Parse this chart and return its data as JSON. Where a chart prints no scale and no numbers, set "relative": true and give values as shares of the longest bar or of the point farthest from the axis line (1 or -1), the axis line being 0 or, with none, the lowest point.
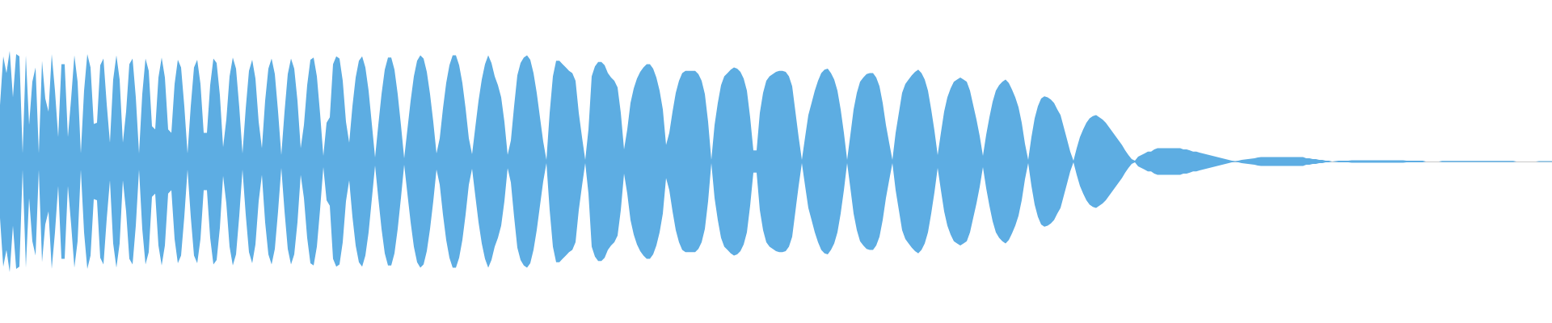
{
  "chart_data": {
    "type": "area",
    "relative": true,
    "categories": [
      null,
      null,
      null,
      null,
      null,
      null,
      null,
      null,
      null,
      null,
      null,
      null,
      null,
      null,
      null,
      null,
      null,
      null,
      null,
      null,
      null,
      null,
      null,
      null,
      null,
      null,
      null,
      null,
      null,
      null,
      null,
      null,
      null,
      null,
      null,
      null,
      null,
      null,
      null,
      null,
      null,
      null,
      null,
      null,
      null,
      null,
      null,
      null,
      null,
      null,
      null,
      null,
      null,
      null,
      null,
      null,
      null,
      null,
      null,
      null,
      null,
      null,
      null,
      null,
      null,
      null,
      null,
      null,
      null,
      null,
      null,
      null,
      null,
      null,
      null,
      null,
      null,
      null,
      null,
      null,
      null,
      null,
      null,
      null,
      null,
      null,
      null,
      null,
      null,
      null,
      null,
      null,
      null,
      null,
      null,
      null,
      null,
      null,
      null,
      null,
      null,
      null,
      null,
      null,
      null,
      null,
      null,
      null,
      null,
      null,
      null,
      null,
      null,
      null,
      null,
      null,
      null,
      null,
      null,
      null,
      null,
      null,
      null,
      null,
      null,
      null,
      null,
      null,
      null,
      null,
      null,
      null,
      null,
      null,
      null,
      null,
      null,
      null,
      null,
      null,
      null,
      null,
      null,
      null,
      null,
      null,
      null,
      null,
      null,
      null,
      null,
      null,
      null,
      null,
      null,
      null,
      null,
      null,
      null,
      null,
      null,
      null,
      null,
      null,
      null,
      null,
      null,
      null,
      null,
      null,
      null,
      null,
      null,
      null,
      null,
      null,
      null,
      null,
      null,
      null,
      null,
      null,
      null,
      null,
      null,
      null,
      null,
      null,
      null,
      null,
      null,
      null,
      null,
      null,
      null,
      null,
      null,
      null,
      null,
      null,
      null,
      null,
      null,
      null,
      null,
      null,
      null,
      null,
      null,
      null,
      null,
      null,
      null,
      null,
      null,
      null,
      null,
      null,
      null,
      null,
      null,
      null,
      null,
      null,
      null,
      null,
      null,
      null,
      null,
      null,
      null,
      null,
      null,
      null,
      null,
      null,
      null,
      null,
      null,
      null,
      null,
      null,
      null,
      null,
      null,
      null,
      null,
      null,
      null,
      null,
      null,
      null,
      null,
      null,
      null,
      null,
      null,
      null,
      null,
      null,
      null,
      null,
      null,
      null,
      null,
      null,
      null,
      null,
      null,
      null,
      null,
      null,
      null,
      null,
      null,
      null,
      null,
      null,
      null,
      null,
      null,
      null,
      null,
      null,
      null,
      null,
      null,
      null,
      null,
      null,
      null,
      null,
      null,
      null,
      null,
      null,
      null,
      null,
      null,
      null,
      null,
      null,
      null,
      null,
      null,
      null,
      null,
      null,
      null,
      null,
      null,
      null,
      null,
      null,
      null,
      null,
      null,
      null,
      null,
      null,
      null,
      null,
      null,
      null,
      null,
      null,
      null,
      null,
      null,
      null,
      null,
      null,
      null,
      null,
      null,
      null,
      null,
      null,
      null,
      null,
      null,
      null,
      null,
      null,
      null,
      null,
      null,
      null,
      null,
      null,
      null,
      null,
      null,
      null,
      null,
      null,
      null,
      null,
      null,
      null,
      null,
      null,
      null,
      null,
      null,
      null,
      null,
      null,
      null,
      null,
      null,
      null,
      null,
      null,
      null,
      null,
      null,
      null,
      null,
      null,
      null,
      null,
      null,
      null,
      null,
      null,
      null,
      null,
      null,
      null,
      null,
      null,
      null,
      null,
      null,
      null,
      null,
      null,
      null,
      null,
      null,
      null,
      null,
      null,
      null,
      null,
      null,
      null,
      null,
      null,
      null,
      null,
      null,
      null,
      null,
      null,
      null,
      null,
      null,
      null,
      null,
      null,
      null,
      null,
      null,
      null,
      null,
      null,
      null,
      null,
      null,
      null,
      null,
      null,
      null,
      null,
      null,
      null,
      null,
      null,
      null,
      null,
      null,
      null,
      null,
      null,
      null,
      null,
      null,
      null,
      null,
      null,
      null,
      null,
      null,
      null,
      null,
      null,
      null,
      null,
      null,
      null,
      null,
      null,
      null,
      null,
      null,
      null,
      null,
      null,
      null,
      null,
      null,
      null,
      null,
      null,
      null,
      null,
      null,
      null,
      null
    ],
    "series": [
      {
        "color": "#5dade2",
        "values": [
          0.51,
          0.95,
          0.8,
          1,
          0.58,
          0.97,
          0.95,
          0.073,
          0.96,
          0.33,
          0.72,
          0.85,
          0.073,
          0.91,
          0.57,
          0.45,
          0.97,
          0.64,
          0.22,
          0.88,
          0.88,
          0.22,
          0.57,
          0.96,
          0.72,
          0.073,
          0.64,
          0.97,
          0.85,
          0.34,
          0.35,
          0.87,
          0.93,
          0.52,
          0.17,
          0.74,
          0.96,
          0.74,
          0.17,
          0.45,
          0.88,
          0.93,
          0.58,
          0.073,
          0.61,
          0.93,
          0.82,
          0.32,
          0.29,
          0.76,
          0.94,
          0.76,
          0.29,
          0.26,
          0.7,
          0.92,
          0.85,
          0.5,
          0.073,
          0.5,
          0.85,
          0.92,
          0.7,
          0.26,
          0.26,
          0.69,
          0.93,
          0.89,
          0.6,
          0.13,
          0.38,
          0.77,
          0.94,
          0.84,
          0.49,
          0.073,
          0.48,
          0.82,
          0.92,
          0.75,
          0.36,
          0.12,
          0.55,
          0.84,
          0.93,
          0.79,
          0.45,
          0.058,
          0.45,
          0.79,
          0.93,
          0.84,
          0.55,
          0.12,
          0.33,
          0.69,
          0.92,
          0.94,
          0.77,
          0.43,
          0.051,
          0.35,
          0.4,
          0.88,
          0.95,
          0.93,
          0.73,
          0.36,
          0.17,
          0.5,
          0.76,
          0.91,
          0.95,
          0.85,
          0.64,
          0.34,
          0.036,
          0.33,
          0.61,
          0.83,
          0.94,
          0.94,
          0.83,
          0.61,
          0.33,
          0.029,
          0.29,
          0.55,
          0.77,
          0.91,
          0.96,
          0.93,
          0.81,
          0.61,
          0.36,
          0.073,
          0.21,
          0.48,
          0.71,
          0.87,
          0.96,
          0.96,
          0.87,
          0.71,
          0.48,
          0.21,
          0.066,
          0.31,
          0.55,
          0.74,
          0.88,
          0.96,
          0.89,
          0.77,
          0.69,
          0.58,
          0.36,
          0.06,
          0.19,
          0.5,
          0.78,
          0.89,
          0.94,
          0.96,
          0.92,
          0.8,
          0.62,
          0.4,
          0.18,
          0.015,
          0.44,
          0.77,
          0.91,
          0.91,
          0.88,
          0.85,
          0.82,
          0.8,
          0.73,
          0.44,
          0.22,
          0.015,
          0.29,
          0.77,
          0.86,
          0.9,
          0.9,
          0.87,
          0.8,
          0.76,
          0.73,
          0.67,
          0.44,
          0.11,
          0.29,
          0.53,
          0.66,
          0.75,
          0.81,
          0.85,
          0.88,
          0.88,
          0.84,
          0.76,
          0.64,
          0.47,
          0.15,
          0.26,
          0.45,
          0.62,
          0.73,
          0.8,
          0.82,
          0.82,
          0.82,
          0.82,
          0.79,
          0.73,
          0.61,
          0.36,
          0.015,
          0.33,
          0.53,
          0.69,
          0.77,
          0.8,
          0.83,
          0.85,
          0.84,
          0.81,
          0.75,
          0.64,
          0.4,
          0.1,
          0.1,
          0.44,
          0.62,
          0.73,
          0.77,
          0.79,
          0.81,
          0.82,
          0.82,
          0.81,
          0.77,
          0.68,
          0.45,
          0.22,
          0.015,
          0.22,
          0.42,
          0.53,
          0.64,
          0.73,
          0.8,
          0.83,
          0.84,
          0.8,
          0.74,
          0.64,
          0.47,
          0.26,
          0.015,
          0.24,
          0.47,
          0.62,
          0.72,
          0.76,
          0.79,
          0.8,
          0.8,
          0.76,
          0.68,
          0.53,
          0.33,
          0.17,
          0.015,
          0.26,
          0.44,
          0.62,
          0.7,
          0.74,
          0.78,
          0.81,
          0.83,
          0.8,
          0.74,
          0.64,
          0.47,
          0.28,
          0.058,
          0.26,
          0.45,
          0.58,
          0.66,
          0.72,
          0.74,
          0.76,
          0.74,
          0.72,
          0.64,
          0.51,
          0.38,
          0.23,
          0.051,
          0.24,
          0.4,
          0.54,
          0.64,
          0.69,
          0.72,
          0.74,
          0.71,
          0.65,
          0.58,
          0.49,
          0.35,
          0.16,
          0.015,
          0.22,
          0.39,
          0.5,
          0.57,
          0.59,
          0.58,
          0.56,
          0.53,
          0.47,
          0.42,
          0.31,
          0.2,
          0.09,
          0.007,
          0.12,
          0.22,
          0.29,
          0.35,
          0.39,
          0.41,
          0.42,
          0.4,
          0.38,
          0.35,
          0.31,
          0.27,
          0.23,
          0.19,
          0.15,
          0.1,
          0.058,
          0.022,
          0.007,
          0.044,
          0.058,
          0.073,
          0.09,
          0.09,
          0.11,
          0.12,
          0.12,
          0.12,
          0.12,
          0.12,
          0.12,
          0.12,
          0.12,
          0.11,
          0.11,
          0.1,
          0.09,
          0.09,
          0.08,
          0.073,
          0.066,
          0.058,
          0.051,
          0.044,
          0.036,
          0.029,
          0.022,
          0.015,
          0.007,
          0.004,
          0.007,
          0.015,
          0.018,
          0.022,
          0.026,
          0.029,
          0.036,
          0.04,
          0.04,
          0.04,
          0.04,
          0.04,
          0.04,
          0.04,
          0.04,
          0.04,
          0.04,
          0.04,
          0.04,
          0.04,
          0.04,
          0.029,
          0.029,
          0.022,
          0.022,
          0.015,
          0.015,
          0.007,
          0.007,
          0,
          0.004,
          0.007,
          0.007,
          0.007,
          0.007,
          0.011,
          0.011,
          0.011,
          0.011,
          0.011,
          0.011,
          0.011,
          0.011,
          0.011,
          0.011,
          0.011,
          0.011,
          0.011,
          0.011,
          0.011,
          0.011,
          0.011,
          0.007,
          0.007,
          0.007,
          0.007,
          0.007,
          0.007,
          0,
          0,
          0,
          0,
          0,
          0.005,
          0.005,
          0.005,
          0.005,
          0.005,
          0.005,
          0.005,
          0.005,
          0.005,
          0.005,
          0.005,
          0.005,
          0.005,
          0.005,
          0.005,
          0.005,
          0.005,
          0.005,
          0.005,
          0.005,
          0.005,
          0.005,
          0.005,
          0,
          0,
          0,
          0,
          0,
          0,
          0,
          0.004,
          0.004,
          0.004,
          0.004,
          0.004
        ]
      },
      {
        "color": "#5dade3",
        "values": [
          -0.51,
          -0.95,
          -0.8,
          -1,
          -0.58,
          -0.97,
          -0.95,
          -0.073,
          -0.96,
          -0.33,
          -0.72,
          -0.85,
          -0.073,
          -0.91,
          -0.57,
          -0.45,
          -0.97,
          -0.64,
          -0.22,
          -0.88,
          -0.88,
          -0.22,
          -0.57,
          -0.96,
          -0.72,
          -0.073,
          -0.64,
          -0.97,
          -0.85,
          -0.34,
          -0.35,
          -0.87,
          -0.93,
          -0.52,
          -0.17,
          -0.74,
          -0.96,
          -0.74,
          -0.17,
          -0.45,
          -0.88,
          -0.93,
          -0.58,
          -0.073,
          -0.61,
          -0.93,
          -0.82,
          -0.32,
          -0.29,
          -0.76,
          -0.94,
          -0.76,
          -0.29,
          -0.26,
          -0.7,
          -0.92,
          -0.85,
          -0.5,
          -0.073,
          -0.5,
          -0.85,
          -0.92,
          -0.7,
          -0.26,
          -0.26,
          -0.69,
          -0.93,
          -0.89,
          -0.6,
          -0.13,
          -0.38,
          -0.77,
          -0.94,
          -0.84,
          -0.49,
          -0.073,
          -0.48,
          -0.82,
          -0.92,
          -0.75,
          -0.36,
          -0.12,
          -0.55,
          -0.84,
          -0.93,
          -0.79,
          -0.45,
          -0.058,
          -0.45,
          -0.79,
          -0.93,
          -0.84,
          -0.55,
          -0.12,
          -0.33,
          -0.69,
          -0.92,
          -0.94,
          -0.77,
          -0.43,
          -0.051,
          -0.35,
          -0.4,
          -0.88,
          -0.95,
          -0.93,
          -0.73,
          -0.36,
          -0.17,
          -0.5,
          -0.76,
          -0.91,
          -0.95,
          -0.85,
          -0.64,
          -0.34,
          -0.036,
          -0.33,
          -0.61,
          -0.83,
          -0.94,
          -0.94,
          -0.83,
          -0.61,
          -0.33,
          -0.029,
          -0.29,
          -0.55,
          -0.77,
          -0.91,
          -0.96,
          -0.93,
          -0.81,
          -0.61,
          -0.36,
          -0.073,
          -0.21,
          -0.48,
          -0.71,
          -0.87,
          -0.96,
          -0.96,
          -0.87,
          -0.71,
          -0.48,
          -0.21,
          -0.066,
          -0.31,
          -0.55,
          -0.74,
          -0.88,
          -0.96,
          -0.89,
          -0.77,
          -0.69,
          -0.58,
          -0.36,
          -0.06,
          -0.19,
          -0.5,
          -0.78,
          -0.89,
          -0.94,
          -0.96,
          -0.92,
          -0.8,
          -0.62,
          -0.4,
          -0.18,
          -0.015,
          -0.44,
          -0.77,
          -0.91,
          -0.91,
          -0.88,
          -0.85,
          -0.82,
          -0.8,
          -0.73,
          -0.44,
          -0.22,
          -0.015,
          -0.29,
          -0.77,
          -0.86,
          -0.9,
          -0.9,
          -0.87,
          -0.8,
          -0.76,
          -0.73,
          -0.67,
          -0.44,
          -0.11,
          -0.29,
          -0.53,
          -0.66,
          -0.75,
          -0.81,
          -0.85,
          -0.88,
          -0.88,
          -0.84,
          -0.76,
          -0.64,
          -0.47,
          -0.15,
          -0.26,
          -0.45,
          -0.62,
          -0.73,
          -0.8,
          -0.82,
          -0.82,
          -0.82,
          -0.82,
          -0.79,
          -0.73,
          -0.61,
          -0.36,
          -0.015,
          -0.33,
          -0.53,
          -0.69,
          -0.77,
          -0.8,
          -0.83,
          -0.85,
          -0.84,
          -0.81,
          -0.75,
          -0.64,
          -0.4,
          -0.1,
          -0.1,
          -0.44,
          -0.62,
          -0.73,
          -0.77,
          -0.79,
          -0.81,
          -0.82,
          -0.82,
          -0.81,
          -0.77,
          -0.68,
          -0.45,
          -0.22,
          -0.015,
          -0.22,
          -0.42,
          -0.53,
          -0.64,
          -0.73,
          -0.8,
          -0.83,
          -0.84,
          -0.8,
          -0.74,
          -0.64,
          -0.47,
          -0.26,
          -0.015,
          -0.24,
          -0.47,
          -0.62,
          -0.72,
          -0.76,
          -0.79,
          -0.8,
          -0.8,
          -0.76,
          -0.68,
          -0.53,
          -0.33,
          -0.17,
          -0.015,
          -0.26,
          -0.44,
          -0.62,
          -0.7,
          -0.74,
          -0.78,
          -0.81,
          -0.83,
          -0.8,
          -0.74,
          -0.64,
          -0.47,
          -0.28,
          -0.058,
          -0.26,
          -0.45,
          -0.58,
          -0.66,
          -0.72,
          -0.74,
          -0.76,
          -0.74,
          -0.72,
          -0.64,
          -0.51,
          -0.38,
          -0.23,
          -0.051,
          -0.24,
          -0.4,
          -0.54,
          -0.64,
          -0.69,
          -0.72,
          -0.74,
          -0.71,
          -0.65,
          -0.58,
          -0.49,
          -0.35,
          -0.16,
          -0.015,
          -0.22,
          -0.39,
          -0.5,
          -0.57,
          -0.59,
          -0.58,
          -0.56,
          -0.53,
          -0.47,
          -0.42,
          -0.31,
          -0.2,
          -0.09,
          -0.007,
          -0.12,
          -0.22,
          -0.29,
          -0.35,
          -0.39,
          -0.41,
          -0.42,
          -0.4,
          -0.38,
          -0.35,
          -0.31,
          -0.27,
          -0.23,
          -0.19,
          -0.15,
          -0.1,
          -0.058,
          -0.022,
          -0.007,
          -0.044,
          -0.058,
          -0.073,
          -0.09,
          -0.09,
          -0.11,
          -0.12,
          -0.12,
          -0.12,
          -0.12,
          -0.12,
          -0.12,
          -0.12,
          -0.12,
          -0.11,
          -0.11,
          -0.1,
          -0.09,
          -0.09,
          -0.08,
          -0.073,
          -0.066,
          -0.058,
          -0.051,
          -0.044,
          -0.036,
          -0.029,
          -0.022,
          -0.015,
          -0.007,
          -0.004,
          -0.007,
          -0.015,
          -0.018,
          -0.022,
          -0.026,
          -0.029,
          -0.036,
          -0.04,
          -0.04,
          -0.04,
          -0.04,
          -0.04,
          -0.04,
          -0.04,
          -0.04,
          -0.04,
          -0.04,
          -0.04,
          -0.04,
          -0.04,
          -0.04,
          -0.029,
          -0.029,
          -0.022,
          -0.022,
          -0.015,
          -0.015,
          -0.007,
          -0.007,
          0,
          -0.004,
          -0.007,
          -0.007,
          -0.007,
          -0.007,
          -0.011,
          -0.011,
          -0.011,
          -0.011,
          -0.011,
          -0.011,
          -0.011,
          -0.011,
          -0.011,
          -0.011,
          -0.011,
          -0.011,
          -0.011,
          -0.011,
          -0.011,
          -0.011,
          -0.011,
          -0.007,
          -0.007,
          -0.007,
          -0.007,
          -0.007,
          -0.007,
          0,
          0,
          0,
          0,
          0,
          -0.005,
          -0.005,
          -0.005,
          -0.005,
          -0.005,
          -0.005,
          -0.005,
          -0.005,
          -0.005,
          -0.005,
          -0.005,
          -0.005,
          -0.005,
          -0.005,
          -0.005,
          -0.005,
          -0.005,
          -0.005,
          -0.005,
          -0.005,
          -0.005,
          -0.005,
          -0.005,
          0,
          0,
          0,
          0,
          0,
          0,
          0,
          -0.004,
          -0.004,
          -0.004,
          -0.004,
          -0.004
        ]
      }
    ]
  }
}
